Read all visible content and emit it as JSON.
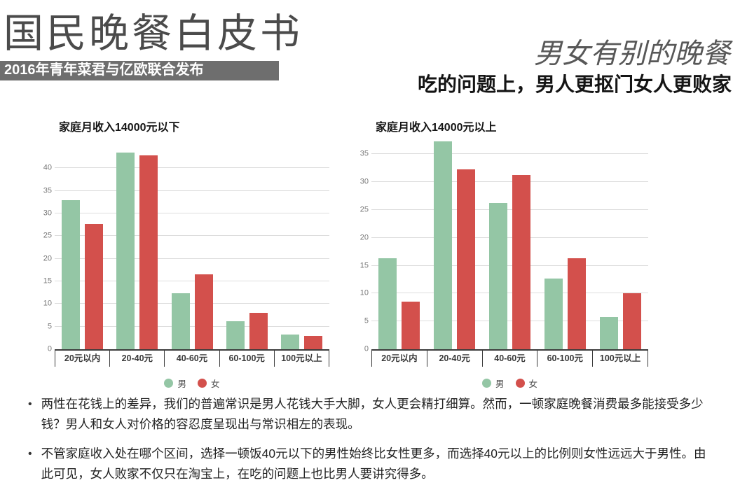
{
  "header": {
    "title": "国民晚餐白皮书",
    "publisher_bar": "2016年青年菜君与亿欧联合发布",
    "right_title": "男女有别的晚餐",
    "right_subtitle": "吃的问题上，男人更抠门女人更败家"
  },
  "colors": {
    "male": "#94c6a5",
    "female": "#d3504c",
    "publisher_bar_bg": "#6e6e6e",
    "grid": "#dddddd",
    "axis": "#3c3c3c"
  },
  "chart_data": [
    {
      "type": "bar",
      "title": "家庭月收入14000元以下",
      "categories": [
        "20元以内",
        "20-40元",
        "40-60元",
        "60-100元",
        "100元以上"
      ],
      "series": [
        {
          "name": "男",
          "color": "#94c6a5",
          "values": [
            33,
            43.5,
            12.3,
            6.2,
            3.3
          ]
        },
        {
          "name": "女",
          "color": "#d3504c",
          "values": [
            27.6,
            42.8,
            16.6,
            8,
            3
          ]
        }
      ],
      "yticks": [
        0,
        5,
        10,
        15,
        20,
        25,
        30,
        35,
        40
      ],
      "ylim": [
        0,
        47
      ],
      "xlabel": "",
      "ylabel": "",
      "grid": true,
      "legend_position": "bottom"
    },
    {
      "type": "bar",
      "title": "家庭月收入14000元以上",
      "categories": [
        "20元以内",
        "20-40元",
        "40-60元",
        "60-100元",
        "100元以上"
      ],
      "series": [
        {
          "name": "男",
          "color": "#94c6a5",
          "values": [
            16.4,
            37.3,
            26.3,
            12.7,
            5.8
          ]
        },
        {
          "name": "女",
          "color": "#d3504c",
          "values": [
            8.6,
            32.3,
            31.3,
            16.3,
            10
          ]
        }
      ],
      "yticks": [
        0,
        5,
        10,
        15,
        20,
        25,
        30,
        35
      ],
      "ylim": [
        0,
        38.2
      ],
      "xlabel": "",
      "ylabel": "",
      "grid": true,
      "legend_position": "bottom"
    }
  ],
  "bullets": [
    "两性在花钱上的差异，我们的普遍常识是男人花钱大手大脚，女人更会精打细算。然而，一顿家庭晚餐消费最多能接受多少钱？男人和女人对价格的容忍度呈现出与常识相左的表现。",
    "不管家庭收入处在哪个区间，选择一顿饭40元以下的男性始终比女性更多，而选择40元以上的比例则女性远远大于男性。由此可见，女人败家不仅只在淘宝上，在吃的问题上也比男人要讲究得多。"
  ],
  "bullet_marker": "•"
}
